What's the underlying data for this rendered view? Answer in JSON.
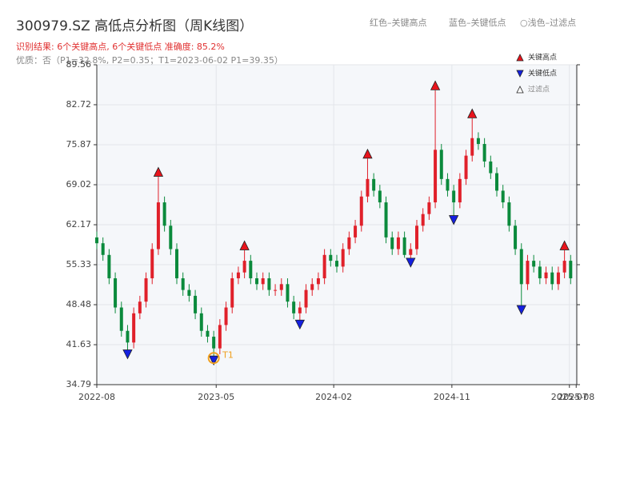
{
  "chart_data": {
    "type": "candlestick",
    "title": "300979.SZ 高低点分析图（周K线图）",
    "subtitle": "识别结果: 6个关键高点, 6个关键低点  准确度: 85.2%",
    "note": "优质：否（P1=32.8%, P2=0.35；T1=2023-06-02 P1=39.35）",
    "header_notes": [
      "红色–关键高点",
      "蓝色–关键低点",
      "○浅色–过滤点"
    ],
    "xlim": [
      0,
      78
    ],
    "xticks": [
      {
        "value": 0,
        "label": "2022-08"
      },
      {
        "value": 19.4,
        "label": "2023-05"
      },
      {
        "value": 38.5,
        "label": "2024-02"
      },
      {
        "value": 57.7,
        "label": "2024-11"
      },
      {
        "value": 76.8,
        "label": "2025-07"
      },
      {
        "value": 77.9,
        "label": "2025-08"
      }
    ],
    "ylim": [
      34.79,
      89.56
    ],
    "yticks": [
      34.79,
      41.63,
      48.48,
      55.33,
      62.17,
      69.02,
      75.87,
      82.72,
      89.56
    ],
    "grid": true,
    "up_color": "#e0202a",
    "down_color": "#0b8a3c",
    "open": [
      60,
      59,
      57,
      53,
      48,
      44,
      42,
      47,
      49,
      53,
      58,
      66,
      62,
      58,
      53,
      51,
      50,
      47,
      44,
      43,
      41,
      45,
      48,
      53,
      54,
      56,
      53,
      52,
      53,
      51,
      51,
      52,
      49,
      47,
      48,
      51,
      52,
      53,
      57,
      56,
      55,
      58,
      60,
      62,
      67,
      70,
      68,
      66,
      60,
      58,
      60,
      57,
      58,
      62,
      64,
      66,
      75,
      70,
      68,
      66,
      70,
      74,
      77,
      76,
      73,
      71,
      68,
      66,
      62,
      58,
      52,
      56,
      55,
      53,
      54,
      52,
      54,
      56
    ],
    "high": [
      61,
      60,
      58,
      54,
      49,
      45,
      48,
      50,
      54,
      59,
      70.4,
      67,
      63,
      59,
      54,
      52,
      51,
      48,
      45,
      44,
      46,
      49,
      54,
      55,
      57.8,
      57,
      54,
      54,
      54,
      52,
      53,
      53,
      50,
      49,
      52,
      53,
      54,
      58,
      58,
      57,
      59,
      61,
      63,
      68,
      73.5,
      71,
      69,
      67,
      61,
      61,
      61,
      59,
      63,
      65,
      67,
      85.2,
      76,
      71,
      69,
      71,
      75,
      80.4,
      78,
      77,
      74,
      72,
      69,
      67,
      63,
      59,
      57,
      57,
      56,
      55,
      55,
      55,
      57.8,
      57
    ],
    "low": [
      58,
      56,
      52,
      47,
      43,
      40.4,
      41,
      46,
      48,
      52,
      57,
      61,
      57,
      52,
      50,
      49,
      46,
      43,
      42,
      39.35,
      40,
      44,
      47,
      52,
      53,
      52,
      51,
      51,
      50,
      50,
      50,
      48,
      46,
      45.5,
      47,
      50,
      51,
      52,
      55,
      54,
      54,
      57,
      59,
      61,
      66,
      67,
      65,
      59,
      57,
      57,
      56.5,
      56.1,
      57,
      61,
      63,
      65,
      69,
      67,
      63.4,
      65,
      69,
      73,
      75,
      72,
      70,
      67,
      65,
      61,
      57,
      48.0,
      51,
      54,
      52,
      52,
      51,
      51,
      53,
      52
    ],
    "close": [
      59,
      57,
      53,
      48,
      44,
      42,
      47,
      49,
      53,
      58,
      66,
      62,
      58,
      53,
      51,
      50,
      47,
      44,
      43,
      41,
      45,
      48,
      53,
      54,
      56,
      53,
      52,
      53,
      51,
      51,
      52,
      49,
      47,
      48,
      51,
      52,
      53,
      57,
      56,
      55,
      58,
      60,
      62,
      67,
      70,
      68,
      66,
      60,
      58,
      60,
      57,
      58,
      62,
      64,
      66,
      75,
      70,
      68,
      66,
      70,
      74,
      77,
      76,
      73,
      71,
      68,
      66,
      62,
      58,
      52,
      56,
      55,
      53,
      54,
      52,
      54,
      56,
      53
    ],
    "markers": [
      {
        "name": "关键高点",
        "shape": "up",
        "color": "#e8141c",
        "x": [
          10,
          24,
          44,
          55,
          61,
          76
        ],
        "values": [
          70.4,
          57.8,
          73.5,
          85.2,
          80.4,
          57.8
        ]
      },
      {
        "name": "关键低点",
        "shape": "down",
        "color": "#1420e0",
        "x": [
          5,
          19,
          33,
          51,
          58,
          69
        ],
        "values": [
          40.4,
          39.35,
          45.5,
          56.1,
          63.4,
          48.0
        ]
      },
      {
        "name": "过滤点",
        "shape": "hollow",
        "color": "#ffffff",
        "x": [],
        "values": []
      }
    ],
    "annotation": {
      "text": "T1",
      "x": 19,
      "value": 39.35,
      "color": "#f0a020"
    }
  }
}
